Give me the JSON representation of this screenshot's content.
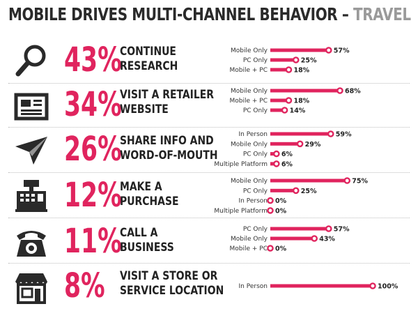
{
  "title_main": "MOBILE DRIVES MULTI-CHANNEL BEHAVIOR – ",
  "title_accent": "TRAVEL",
  "accent_color": "#e0245e",
  "icons": [
    "magnifier-icon",
    "newspaper-icon",
    "paper-plane-icon",
    "cash-register-icon",
    "telephone-icon",
    "storefront-icon"
  ],
  "chart_data": {
    "type": "bar",
    "title": "MOBILE DRIVES MULTI-CHANNEL BEHAVIOR – TRAVEL",
    "xlim": [
      0,
      100
    ],
    "groups": [
      {
        "percent": "43%",
        "label_lines": [
          "CONTINUE",
          "RESEARCH"
        ],
        "categories": [
          "Mobile Only",
          "PC Only",
          "Mobile + PC"
        ],
        "values": [
          57,
          25,
          18
        ]
      },
      {
        "percent": "34%",
        "label_lines": [
          "VISIT A RETAILER",
          "WEBSITE"
        ],
        "categories": [
          "Mobile Only",
          "Mobile + PC",
          "PC Only"
        ],
        "values": [
          68,
          18,
          14
        ]
      },
      {
        "percent": "26%",
        "label_lines": [
          "SHARE INFO AND",
          "WORD-OF-MOUTH"
        ],
        "categories": [
          "In Person",
          "Mobile Only",
          "PC Only",
          "Multiple Platform"
        ],
        "values": [
          59,
          29,
          6,
          6
        ]
      },
      {
        "percent": "12%",
        "label_lines": [
          "MAKE A",
          "PURCHASE"
        ],
        "categories": [
          "Mobile Only",
          "PC Only",
          "In Person",
          "Multiple Platform"
        ],
        "values": [
          75,
          25,
          0,
          0
        ]
      },
      {
        "percent": "11%",
        "label_lines": [
          "CALL A",
          "BUSINESS"
        ],
        "categories": [
          "PC Only",
          "Mobile Only",
          "Mobile + PC"
        ],
        "values": [
          57,
          43,
          0
        ]
      },
      {
        "percent": "8%",
        "label_lines": [
          "VISIT A STORE OR",
          "SERVICE LOCATION"
        ],
        "categories": [
          "In Person"
        ],
        "values": [
          100
        ]
      }
    ]
  }
}
